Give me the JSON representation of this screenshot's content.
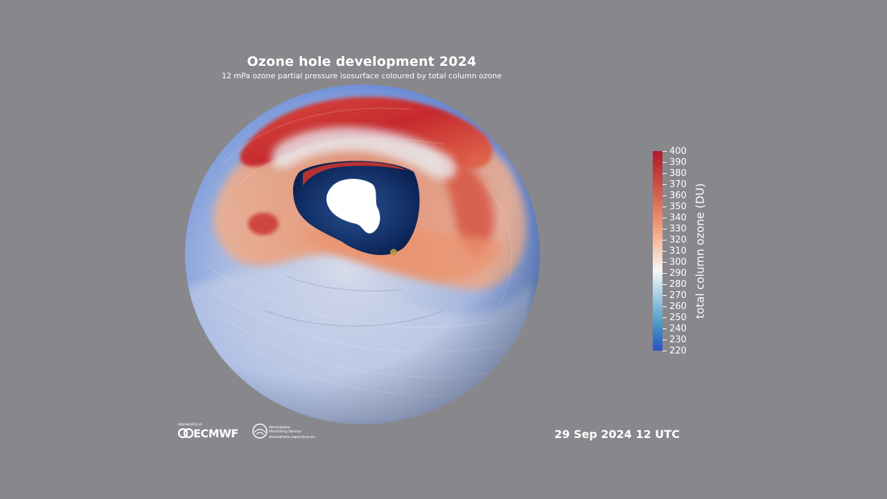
{
  "header": {
    "title": "Ozone hole development 2024",
    "subtitle": "12 mPa ozone partial pressure isosurface coloured by total column ozone"
  },
  "colorbar": {
    "title": "total column ozone (DU)",
    "ticks": [
      "400",
      "390",
      "380",
      "370",
      "360",
      "350",
      "340",
      "330",
      "320",
      "310",
      "300",
      "290",
      "280",
      "270",
      "260",
      "250",
      "240",
      "230",
      "220"
    ],
    "min": 220,
    "max": 400,
    "colors": [
      "#b2182b",
      "#d6604d",
      "#f4a582",
      "#f7f7f7",
      "#92c5de",
      "#4393c3",
      "#2c52c2"
    ]
  },
  "timestamp": "29 Sep 2024 12 UTC",
  "logos": {
    "ecmwf_small": "IMPLEMENTED BY",
    "ecmwf": "ECMWF",
    "cams_line1": "Atmosphere",
    "cams_line2": "Monitoring Service",
    "cams_url": "atmosphere.copernicus.eu"
  },
  "colors": {
    "background": "#88878c",
    "high_ozone": "#c0272d",
    "low_ozone": "#6f93d8",
    "ozone_hole": "#0f2a5e",
    "antarctica": "#ffffff"
  }
}
